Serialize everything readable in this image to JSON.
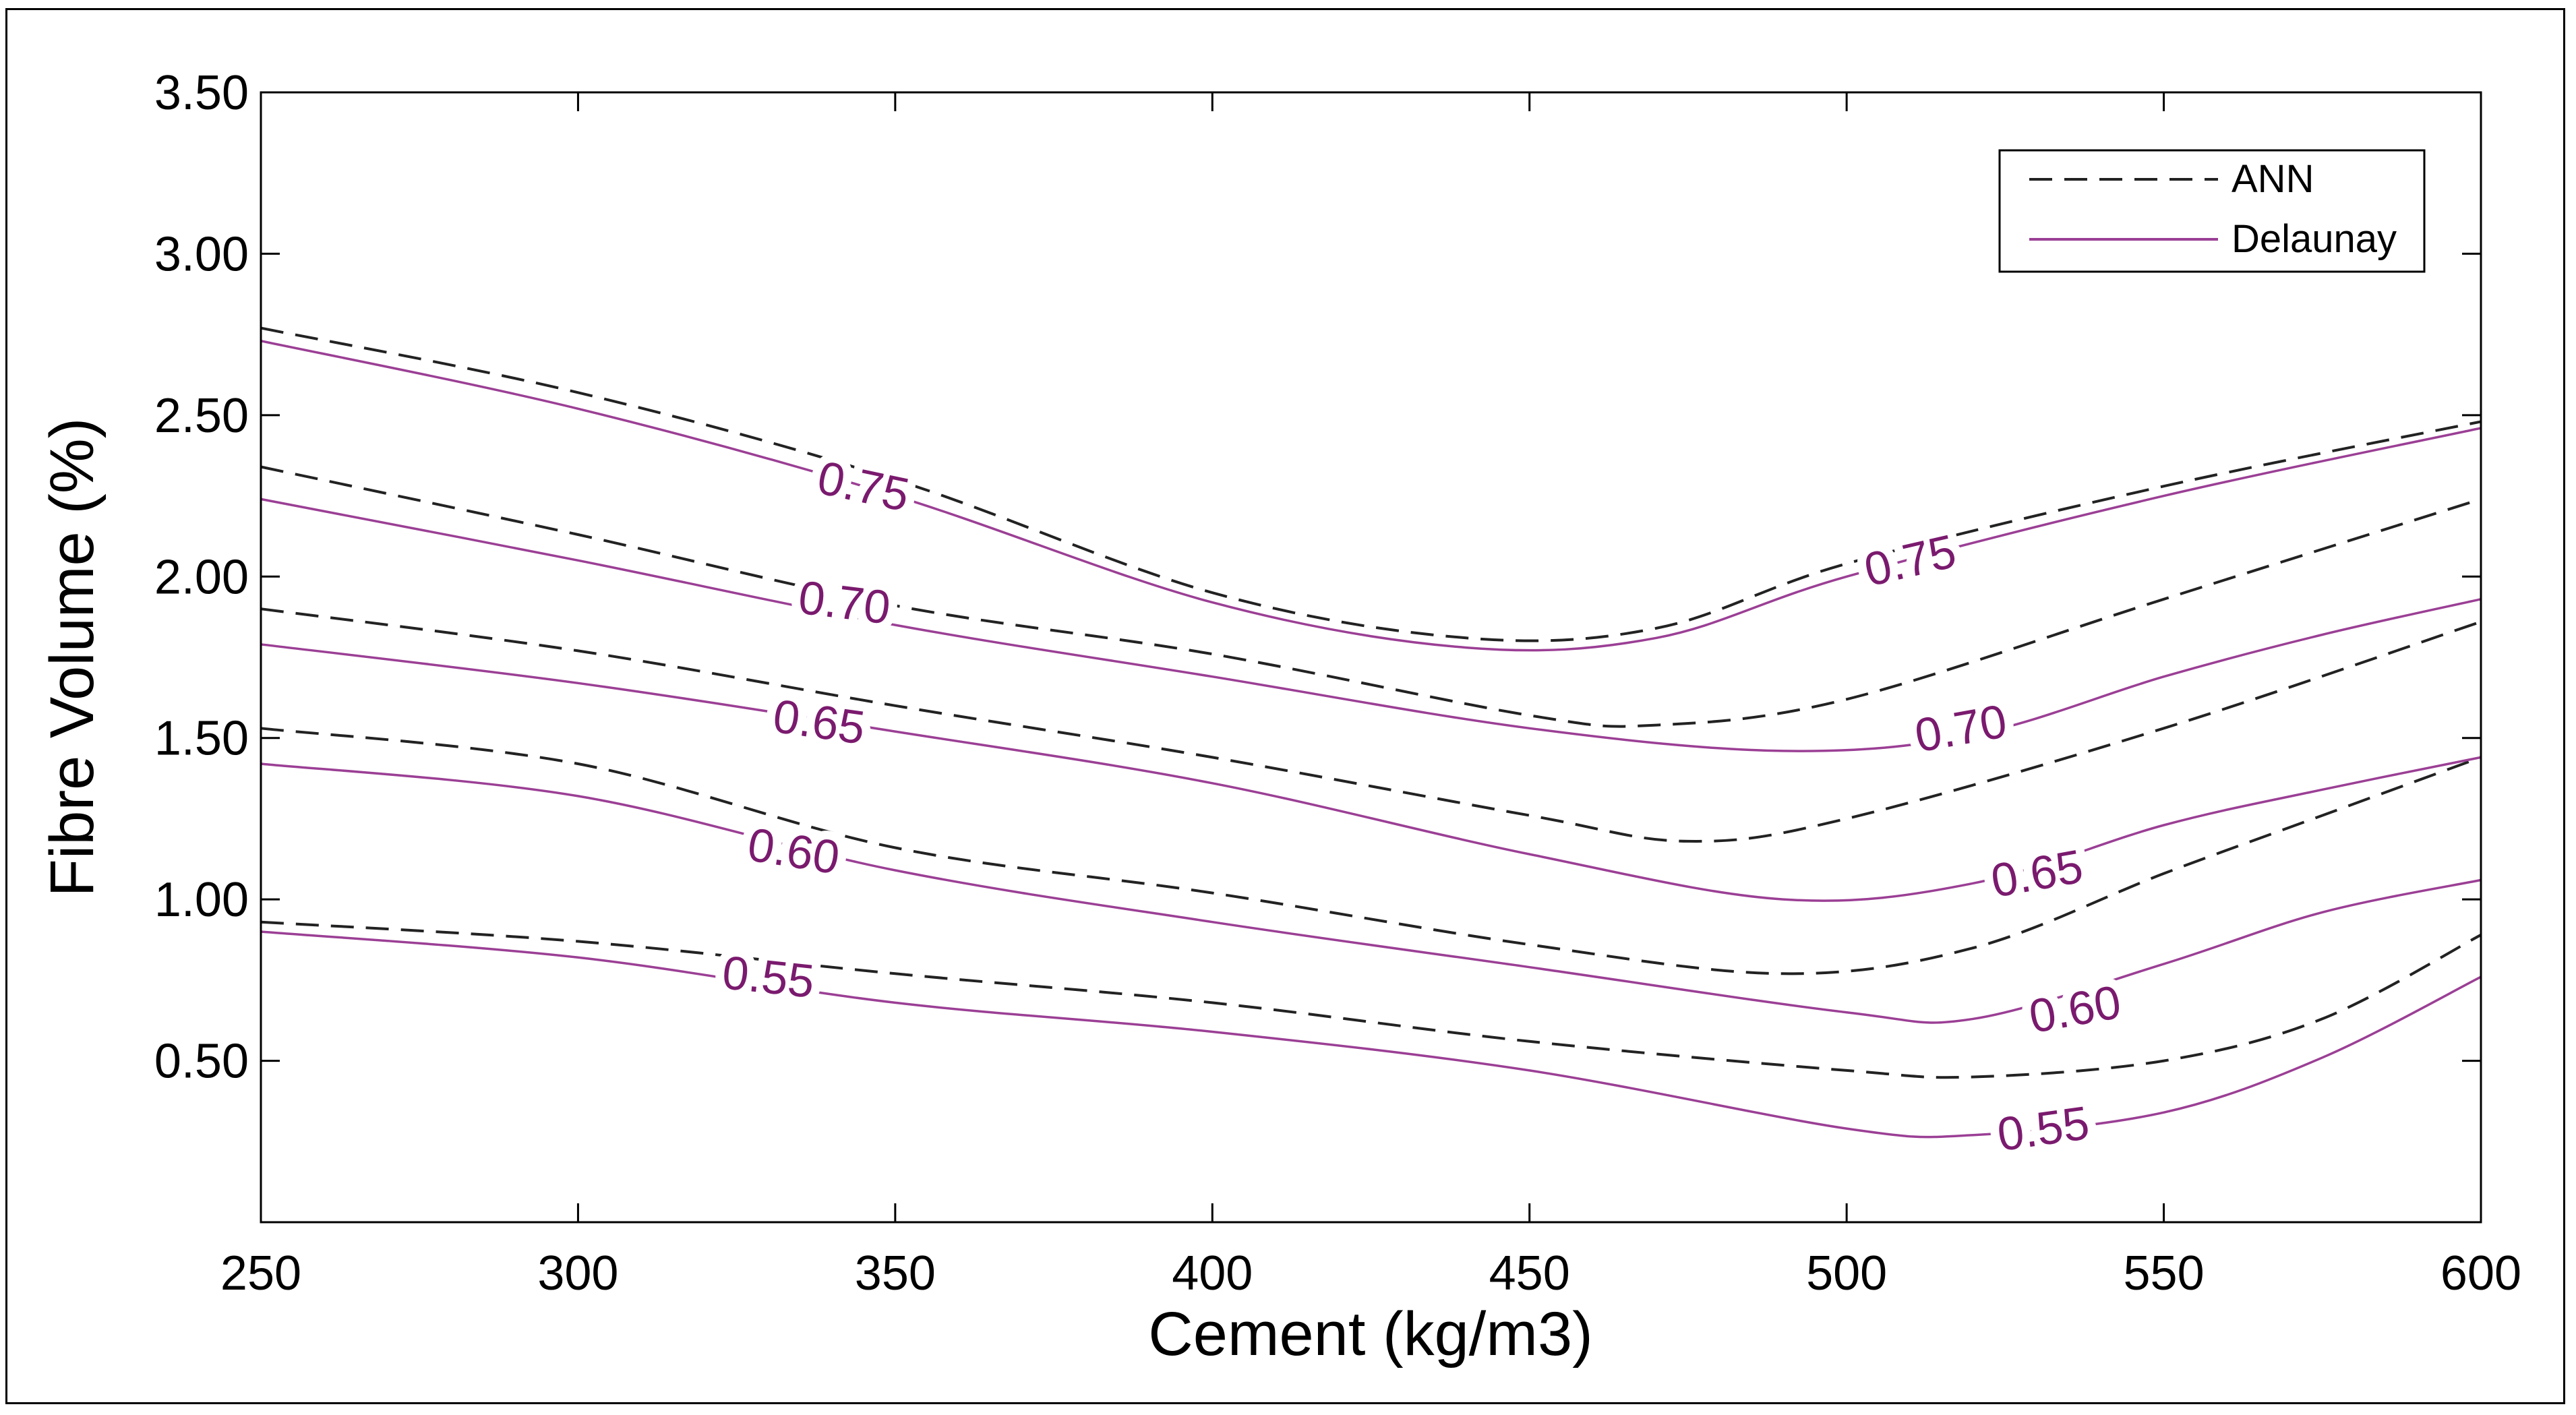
{
  "chart_data": {
    "type": "line",
    "subtype": "contour",
    "xlabel": "Cement (kg/m3)",
    "ylabel": "Fibre Volume (%)",
    "xlim": [
      250,
      600
    ],
    "ylim": [
      0.0,
      3.5
    ],
    "x_ticks": [
      "250",
      "300",
      "350",
      "400",
      "450",
      "500",
      "550",
      "600"
    ],
    "y_ticks": [
      "0.50",
      "1.00",
      "1.50",
      "2.00",
      "2.50",
      "3.00",
      "3.50"
    ],
    "grid": false,
    "legend": "top-right",
    "colors": {
      "ANN": "#222222",
      "Delaunay": "#9b3f95",
      "label": "#7a1a6e"
    },
    "series": [
      {
        "name": "ANN",
        "style": "dashed",
        "contours": [
          {
            "level": "0.55",
            "points": [
              [
                250,
                0.93
              ],
              [
                300,
                0.87
              ],
              [
                350,
                0.77
              ],
              [
                400,
                0.68
              ],
              [
                450,
                0.56
              ],
              [
                500,
                0.47
              ],
              [
                520,
                0.45
              ],
              [
                550,
                0.5
              ],
              [
                575,
                0.63
              ],
              [
                600,
                0.89
              ]
            ]
          },
          {
            "level": "0.60",
            "points": [
              [
                250,
                1.53
              ],
              [
                300,
                1.42
              ],
              [
                350,
                1.16
              ],
              [
                400,
                1.02
              ],
              [
                450,
                0.86
              ],
              [
                490,
                0.77
              ],
              [
                520,
                0.85
              ],
              [
                550,
                1.08
              ],
              [
                575,
                1.26
              ],
              [
                600,
                1.44
              ]
            ]
          },
          {
            "level": "0.65",
            "points": [
              [
                250,
                1.9
              ],
              [
                300,
                1.77
              ],
              [
                350,
                1.6
              ],
              [
                400,
                1.44
              ],
              [
                450,
                1.26
              ],
              [
                475,
                1.18
              ],
              [
                500,
                1.25
              ],
              [
                550,
                1.53
              ],
              [
                600,
                1.86
              ]
            ]
          },
          {
            "level": "0.70",
            "points": [
              [
                250,
                2.34
              ],
              [
                300,
                2.13
              ],
              [
                350,
                1.91
              ],
              [
                400,
                1.76
              ],
              [
                450,
                1.57
              ],
              [
                470,
                1.54
              ],
              [
                500,
                1.62
              ],
              [
                550,
                1.93
              ],
              [
                600,
                2.24
              ]
            ]
          },
          {
            "level": "0.75",
            "points": [
              [
                250,
                2.77
              ],
              [
                300,
                2.57
              ],
              [
                350,
                2.3
              ],
              [
                400,
                1.95
              ],
              [
                440,
                1.81
              ],
              [
                470,
                1.84
              ],
              [
                500,
                2.04
              ],
              [
                550,
                2.28
              ],
              [
                600,
                2.48
              ]
            ]
          }
        ]
      },
      {
        "name": "Delaunay",
        "style": "solid",
        "contours": [
          {
            "level": "0.55",
            "points": [
              [
                250,
                0.9
              ],
              [
                300,
                0.82
              ],
              [
                350,
                0.68
              ],
              [
                400,
                0.59
              ],
              [
                450,
                0.47
              ],
              [
                500,
                0.29
              ],
              [
                520,
                0.27
              ],
              [
                550,
                0.34
              ],
              [
                575,
                0.51
              ],
              [
                600,
                0.76
              ]
            ]
          },
          {
            "level": "0.60",
            "points": [
              [
                250,
                1.42
              ],
              [
                300,
                1.32
              ],
              [
                350,
                1.09
              ],
              [
                400,
                0.93
              ],
              [
                450,
                0.79
              ],
              [
                500,
                0.65
              ],
              [
                520,
                0.63
              ],
              [
                550,
                0.8
              ],
              [
                575,
                0.96
              ],
              [
                600,
                1.06
              ]
            ]
          },
          {
            "level": "0.65",
            "points": [
              [
                250,
                1.79
              ],
              [
                300,
                1.67
              ],
              [
                350,
                1.52
              ],
              [
                400,
                1.36
              ],
              [
                450,
                1.14
              ],
              [
                490,
                1.0
              ],
              [
                520,
                1.05
              ],
              [
                550,
                1.23
              ],
              [
                575,
                1.34
              ],
              [
                600,
                1.44
              ]
            ]
          },
          {
            "level": "0.70",
            "points": [
              [
                250,
                2.24
              ],
              [
                300,
                2.05
              ],
              [
                350,
                1.85
              ],
              [
                400,
                1.69
              ],
              [
                450,
                1.53
              ],
              [
                490,
                1.46
              ],
              [
                520,
                1.51
              ],
              [
                550,
                1.69
              ],
              [
                575,
                1.82
              ],
              [
                600,
                1.93
              ]
            ]
          },
          {
            "level": "0.75",
            "points": [
              [
                250,
                2.73
              ],
              [
                300,
                2.52
              ],
              [
                350,
                2.25
              ],
              [
                400,
                1.92
              ],
              [
                440,
                1.78
              ],
              [
                470,
                1.81
              ],
              [
                500,
                2.0
              ],
              [
                550,
                2.25
              ],
              [
                600,
                2.46
              ]
            ]
          }
        ]
      }
    ],
    "contour_labels": [
      {
        "text": "0.75",
        "x": 345,
        "y": 2.28,
        "angle": 12
      },
      {
        "text": "0.70",
        "x": 342,
        "y": 1.92,
        "angle": 7
      },
      {
        "text": "0.65",
        "x": 338,
        "y": 1.55,
        "angle": 8
      },
      {
        "text": "0.60",
        "x": 334,
        "y": 1.15,
        "angle": 9
      },
      {
        "text": "0.55",
        "x": 330,
        "y": 0.76,
        "angle": 6
      },
      {
        "text": "0.75",
        "x": 510,
        "y": 2.05,
        "angle": -13
      },
      {
        "text": "0.70",
        "x": 518,
        "y": 1.53,
        "angle": -10
      },
      {
        "text": "0.65",
        "x": 530,
        "y": 1.08,
        "angle": -10
      },
      {
        "text": "0.60",
        "x": 536,
        "y": 0.66,
        "angle": -10
      },
      {
        "text": "0.55",
        "x": 531,
        "y": 0.29,
        "angle": -8
      }
    ]
  }
}
